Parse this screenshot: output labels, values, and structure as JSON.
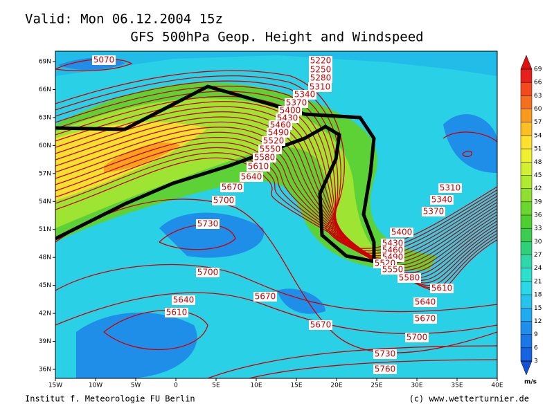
{
  "header": {
    "valid": "Valid: Mon 06.12.2004 15z",
    "title": "GFS 500hPa Geop. Height and Windspeed"
  },
  "map": {
    "lat_labels": [
      "69N",
      "66N",
      "63N",
      "60N",
      "57N",
      "54N",
      "51N",
      "48N",
      "45N",
      "42N",
      "39N",
      "36N"
    ],
    "lon_labels": [
      "15W",
      "10W",
      "5W",
      "0",
      "5E",
      "10E",
      "15E",
      "20E",
      "25E",
      "30E",
      "35E",
      "40E"
    ],
    "contour_labels": [
      "5070",
      "5220",
      "5250",
      "5280",
      "5310",
      "5340",
      "5370",
      "5400",
      "5430",
      "5460",
      "5490",
      "5520",
      "5550",
      "5580",
      "5610",
      "5640",
      "5670",
      "5700",
      "5730",
      "5700",
      "5640",
      "5610",
      "5670",
      "5670",
      "5310",
      "5340",
      "5370",
      "5400",
      "5430",
      "5460",
      "5490",
      "5520",
      "5550",
      "5580",
      "5610",
      "5640",
      "5670",
      "5700",
      "5730",
      "5760"
    ]
  },
  "colorbar": {
    "ticks": [
      69,
      66,
      63,
      60,
      57,
      54,
      51,
      48,
      45,
      42,
      39,
      36,
      33,
      30,
      27,
      24,
      21,
      18,
      15,
      12,
      9,
      6,
      3
    ],
    "unit": "m/s",
    "colors": [
      "#e8201c",
      "#f24a1c",
      "#f5701c",
      "#f89a20",
      "#fbbf24",
      "#fde030",
      "#f0f030",
      "#d2f030",
      "#b0ea30",
      "#8ee030",
      "#6cd630",
      "#4ecf30",
      "#3ccc50",
      "#30d07a",
      "#2ed8a8",
      "#2ce0cc",
      "#2ad8e8",
      "#26c4ec",
      "#22aaee",
      "#1e90ec",
      "#1a78e6",
      "#1664e0"
    ]
  },
  "footer": {
    "left": "Institut f. Meteorologie  FU Berlin",
    "right": "(c) www.wetterturnier.de"
  }
}
